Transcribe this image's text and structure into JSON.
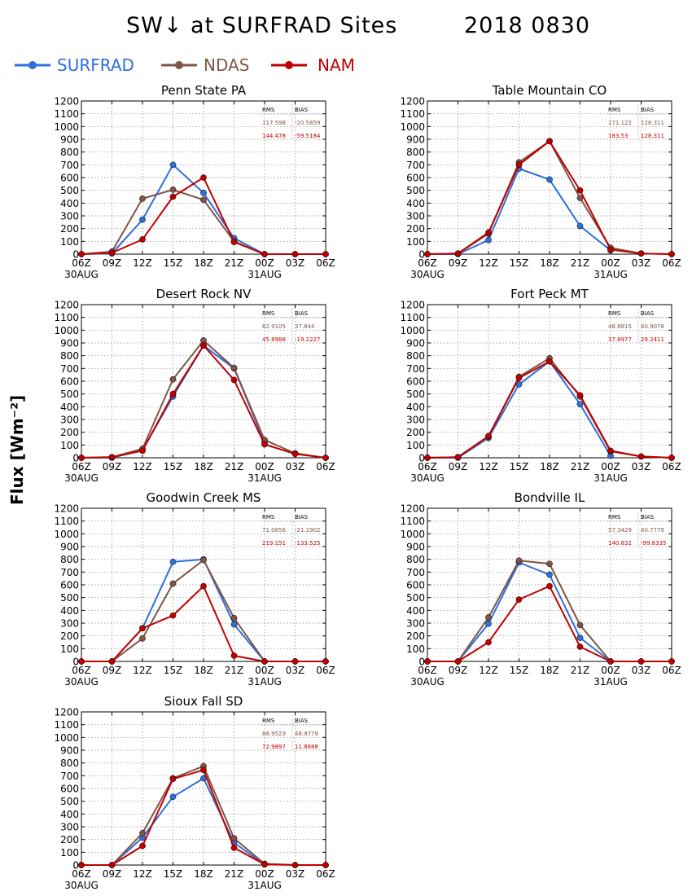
{
  "title": "SW↓ at SURFRAD Sites",
  "date": "2018 0830",
  "ylabel": "Flux [Wm⁻²]",
  "colors": {
    "SURFRAD": "#2e6fd8",
    "NDAS": "#7f5547",
    "NAM": "#c00000"
  },
  "legend": [
    {
      "name": "SURFRAD",
      "color": "#2e6fd8"
    },
    {
      "name": "NDAS",
      "color": "#7f5547"
    },
    {
      "name": "NAM",
      "color": "#c00000"
    }
  ],
  "stats_headers": [
    "RMS",
    "BIAS"
  ],
  "chart_data": [
    {
      "type": "line",
      "title": "Penn State PA",
      "categories": [
        "06Z",
        "09Z",
        "12Z",
        "15Z",
        "18Z",
        "21Z",
        "00Z",
        "03Z",
        "06Z"
      ],
      "date_labels": [
        "30AUG",
        "31AUG"
      ],
      "ylim": [
        0,
        1200
      ],
      "yticks": [
        0,
        100,
        200,
        300,
        400,
        500,
        600,
        700,
        800,
        900,
        1000,
        1100,
        1200
      ],
      "grid": true,
      "series": [
        {
          "name": "SURFRAD",
          "values": [
            0,
            5,
            270,
            700,
            480,
            125,
            0,
            null,
            null
          ]
        },
        {
          "name": "NDAS",
          "values": [
            0,
            20,
            435,
            505,
            425,
            100,
            0,
            0,
            0
          ]
        },
        {
          "name": "NAM",
          "values": [
            0,
            10,
            115,
            450,
            600,
            95,
            0,
            0,
            0
          ]
        }
      ],
      "stats": [
        {
          "series": "NDAS",
          "rms": "117.598",
          "bias": "-20.5859"
        },
        {
          "series": "NAM",
          "rms": "144.478",
          "bias": "-59.5184"
        }
      ]
    },
    {
      "type": "line",
      "title": "Table Mountain CO",
      "categories": [
        "06Z",
        "09Z",
        "12Z",
        "15Z",
        "18Z",
        "21Z",
        "00Z",
        "03Z",
        "06Z"
      ],
      "date_labels": [
        "30AUG",
        "31AUG"
      ],
      "ylim": [
        0,
        1200
      ],
      "yticks": [
        0,
        100,
        200,
        300,
        400,
        500,
        600,
        700,
        800,
        900,
        1000,
        1100,
        1200
      ],
      "grid": true,
      "series": [
        {
          "name": "SURFRAD",
          "values": [
            0,
            0,
            110,
            670,
            585,
            220,
            30,
            null,
            null
          ]
        },
        {
          "name": "NDAS",
          "values": [
            0,
            5,
            160,
            720,
            885,
            440,
            50,
            5,
            0
          ]
        },
        {
          "name": "NAM",
          "values": [
            0,
            5,
            170,
            700,
            885,
            500,
            35,
            5,
            0
          ]
        }
      ],
      "stats": [
        {
          "series": "NDAS",
          "rms": "171.122",
          "bias": "128.311"
        },
        {
          "series": "NAM",
          "rms": "183.53",
          "bias": "128.311"
        }
      ]
    },
    {
      "type": "line",
      "title": "Desert Rock NV",
      "categories": [
        "06Z",
        "09Z",
        "12Z",
        "15Z",
        "18Z",
        "21Z",
        "00Z",
        "03Z",
        "06Z"
      ],
      "date_labels": [
        "30AUG",
        "31AUG"
      ],
      "ylim": [
        0,
        1200
      ],
      "yticks": [
        0,
        100,
        200,
        300,
        400,
        500,
        600,
        700,
        800,
        900,
        1000,
        1100,
        1200
      ],
      "grid": true,
      "series": [
        {
          "name": "SURFRAD",
          "values": [
            0,
            0,
            60,
            480,
            880,
            700,
            120,
            null,
            null
          ]
        },
        {
          "name": "NDAS",
          "values": [
            0,
            5,
            70,
            615,
            920,
            705,
            140,
            35,
            0
          ]
        },
        {
          "name": "NAM",
          "values": [
            0,
            5,
            55,
            500,
            880,
            610,
            105,
            30,
            0
          ]
        }
      ],
      "stats": [
        {
          "series": "NDAS",
          "rms": "82.9105",
          "bias": "37.844"
        },
        {
          "series": "NAM",
          "rms": "45.8988",
          "bias": "-19.2227"
        }
      ]
    },
    {
      "type": "line",
      "title": "Fort Peck MT",
      "categories": [
        "06Z",
        "09Z",
        "12Z",
        "15Z",
        "18Z",
        "21Z",
        "00Z",
        "03Z",
        "06Z"
      ],
      "date_labels": [
        "30AUG",
        "31AUG"
      ],
      "ylim": [
        0,
        1200
      ],
      "yticks": [
        0,
        100,
        200,
        300,
        400,
        500,
        600,
        700,
        800,
        900,
        1000,
        1100,
        1200
      ],
      "grid": true,
      "series": [
        {
          "name": "SURFRAD",
          "values": [
            0,
            0,
            155,
            575,
            755,
            420,
            15,
            null,
            null
          ]
        },
        {
          "name": "NDAS",
          "values": [
            0,
            5,
            165,
            635,
            780,
            480,
            50,
            10,
            0
          ]
        },
        {
          "name": "NAM",
          "values": [
            0,
            5,
            170,
            625,
            755,
            490,
            55,
            10,
            0
          ]
        }
      ],
      "stats": [
        {
          "series": "NDAS",
          "rms": "48.8815",
          "bias": "40.9078"
        },
        {
          "series": "NAM",
          "rms": "37.8977",
          "bias": "29.2411"
        }
      ]
    },
    {
      "type": "line",
      "title": "Goodwin Creek MS",
      "categories": [
        "06Z",
        "09Z",
        "12Z",
        "15Z",
        "18Z",
        "21Z",
        "00Z",
        "03Z",
        "06Z"
      ],
      "date_labels": [
        "30AUG",
        "31AUG"
      ],
      "ylim": [
        0,
        1200
      ],
      "yticks": [
        0,
        100,
        200,
        300,
        400,
        500,
        600,
        700,
        800,
        900,
        1000,
        1100,
        1200
      ],
      "grid": true,
      "series": [
        {
          "name": "SURFRAD",
          "values": [
            0,
            0,
            260,
            780,
            800,
            290,
            0,
            null,
            null
          ]
        },
        {
          "name": "NDAS",
          "values": [
            0,
            0,
            180,
            610,
            795,
            340,
            0,
            0,
            0
          ]
        },
        {
          "name": "NAM",
          "values": [
            0,
            0,
            260,
            360,
            590,
            45,
            0,
            0,
            0
          ]
        }
      ],
      "stats": [
        {
          "series": "NDAS",
          "rms": "71.0856",
          "bias": "-21.1902"
        },
        {
          "series": "NAM",
          "rms": "219.151",
          "bias": "-133.525"
        }
      ]
    },
    {
      "type": "line",
      "title": "Bondville IL",
      "categories": [
        "06Z",
        "09Z",
        "12Z",
        "15Z",
        "18Z",
        "21Z",
        "00Z",
        "03Z",
        "06Z"
      ],
      "date_labels": [
        "30AUG",
        "31AUG"
      ],
      "ylim": [
        0,
        1200
      ],
      "yticks": [
        0,
        100,
        200,
        300,
        400,
        500,
        600,
        700,
        800,
        900,
        1000,
        1100,
        1200
      ],
      "grid": true,
      "series": [
        {
          "name": "SURFRAD",
          "values": [
            0,
            0,
            295,
            775,
            680,
            185,
            0,
            null,
            null
          ]
        },
        {
          "name": "NDAS",
          "values": [
            0,
            0,
            345,
            790,
            765,
            285,
            0,
            0,
            0
          ]
        },
        {
          "name": "NAM",
          "values": [
            0,
            0,
            150,
            485,
            590,
            115,
            0,
            0,
            0
          ]
        }
      ],
      "stats": [
        {
          "series": "NDAS",
          "rms": "57.3429",
          "bias": "40.7779"
        },
        {
          "series": "NAM",
          "rms": "140.832",
          "bias": "-99.8335"
        }
      ]
    },
    {
      "type": "line",
      "title": "Sioux Fall SD",
      "categories": [
        "06Z",
        "09Z",
        "12Z",
        "15Z",
        "18Z",
        "21Z",
        "00Z",
        "03Z",
        "06Z"
      ],
      "date_labels": [
        "30AUG",
        "31AUG"
      ],
      "ylim": [
        0,
        1200
      ],
      "yticks": [
        0,
        100,
        200,
        300,
        400,
        500,
        600,
        700,
        800,
        900,
        1000,
        1100,
        1200
      ],
      "grid": true,
      "series": [
        {
          "name": "SURFRAD",
          "values": [
            0,
            0,
            215,
            535,
            680,
            175,
            5,
            null,
            null
          ]
        },
        {
          "name": "NDAS",
          "values": [
            0,
            0,
            250,
            680,
            775,
            210,
            10,
            0,
            0
          ]
        },
        {
          "name": "NAM",
          "values": [
            0,
            0,
            150,
            675,
            745,
            135,
            5,
            0,
            0
          ]
        }
      ],
      "stats": [
        {
          "series": "NDAS",
          "rms": "88.9523",
          "bias": "48.9779"
        },
        {
          "series": "NAM",
          "rms": "72.9897",
          "bias": "11.8888"
        }
      ]
    }
  ]
}
